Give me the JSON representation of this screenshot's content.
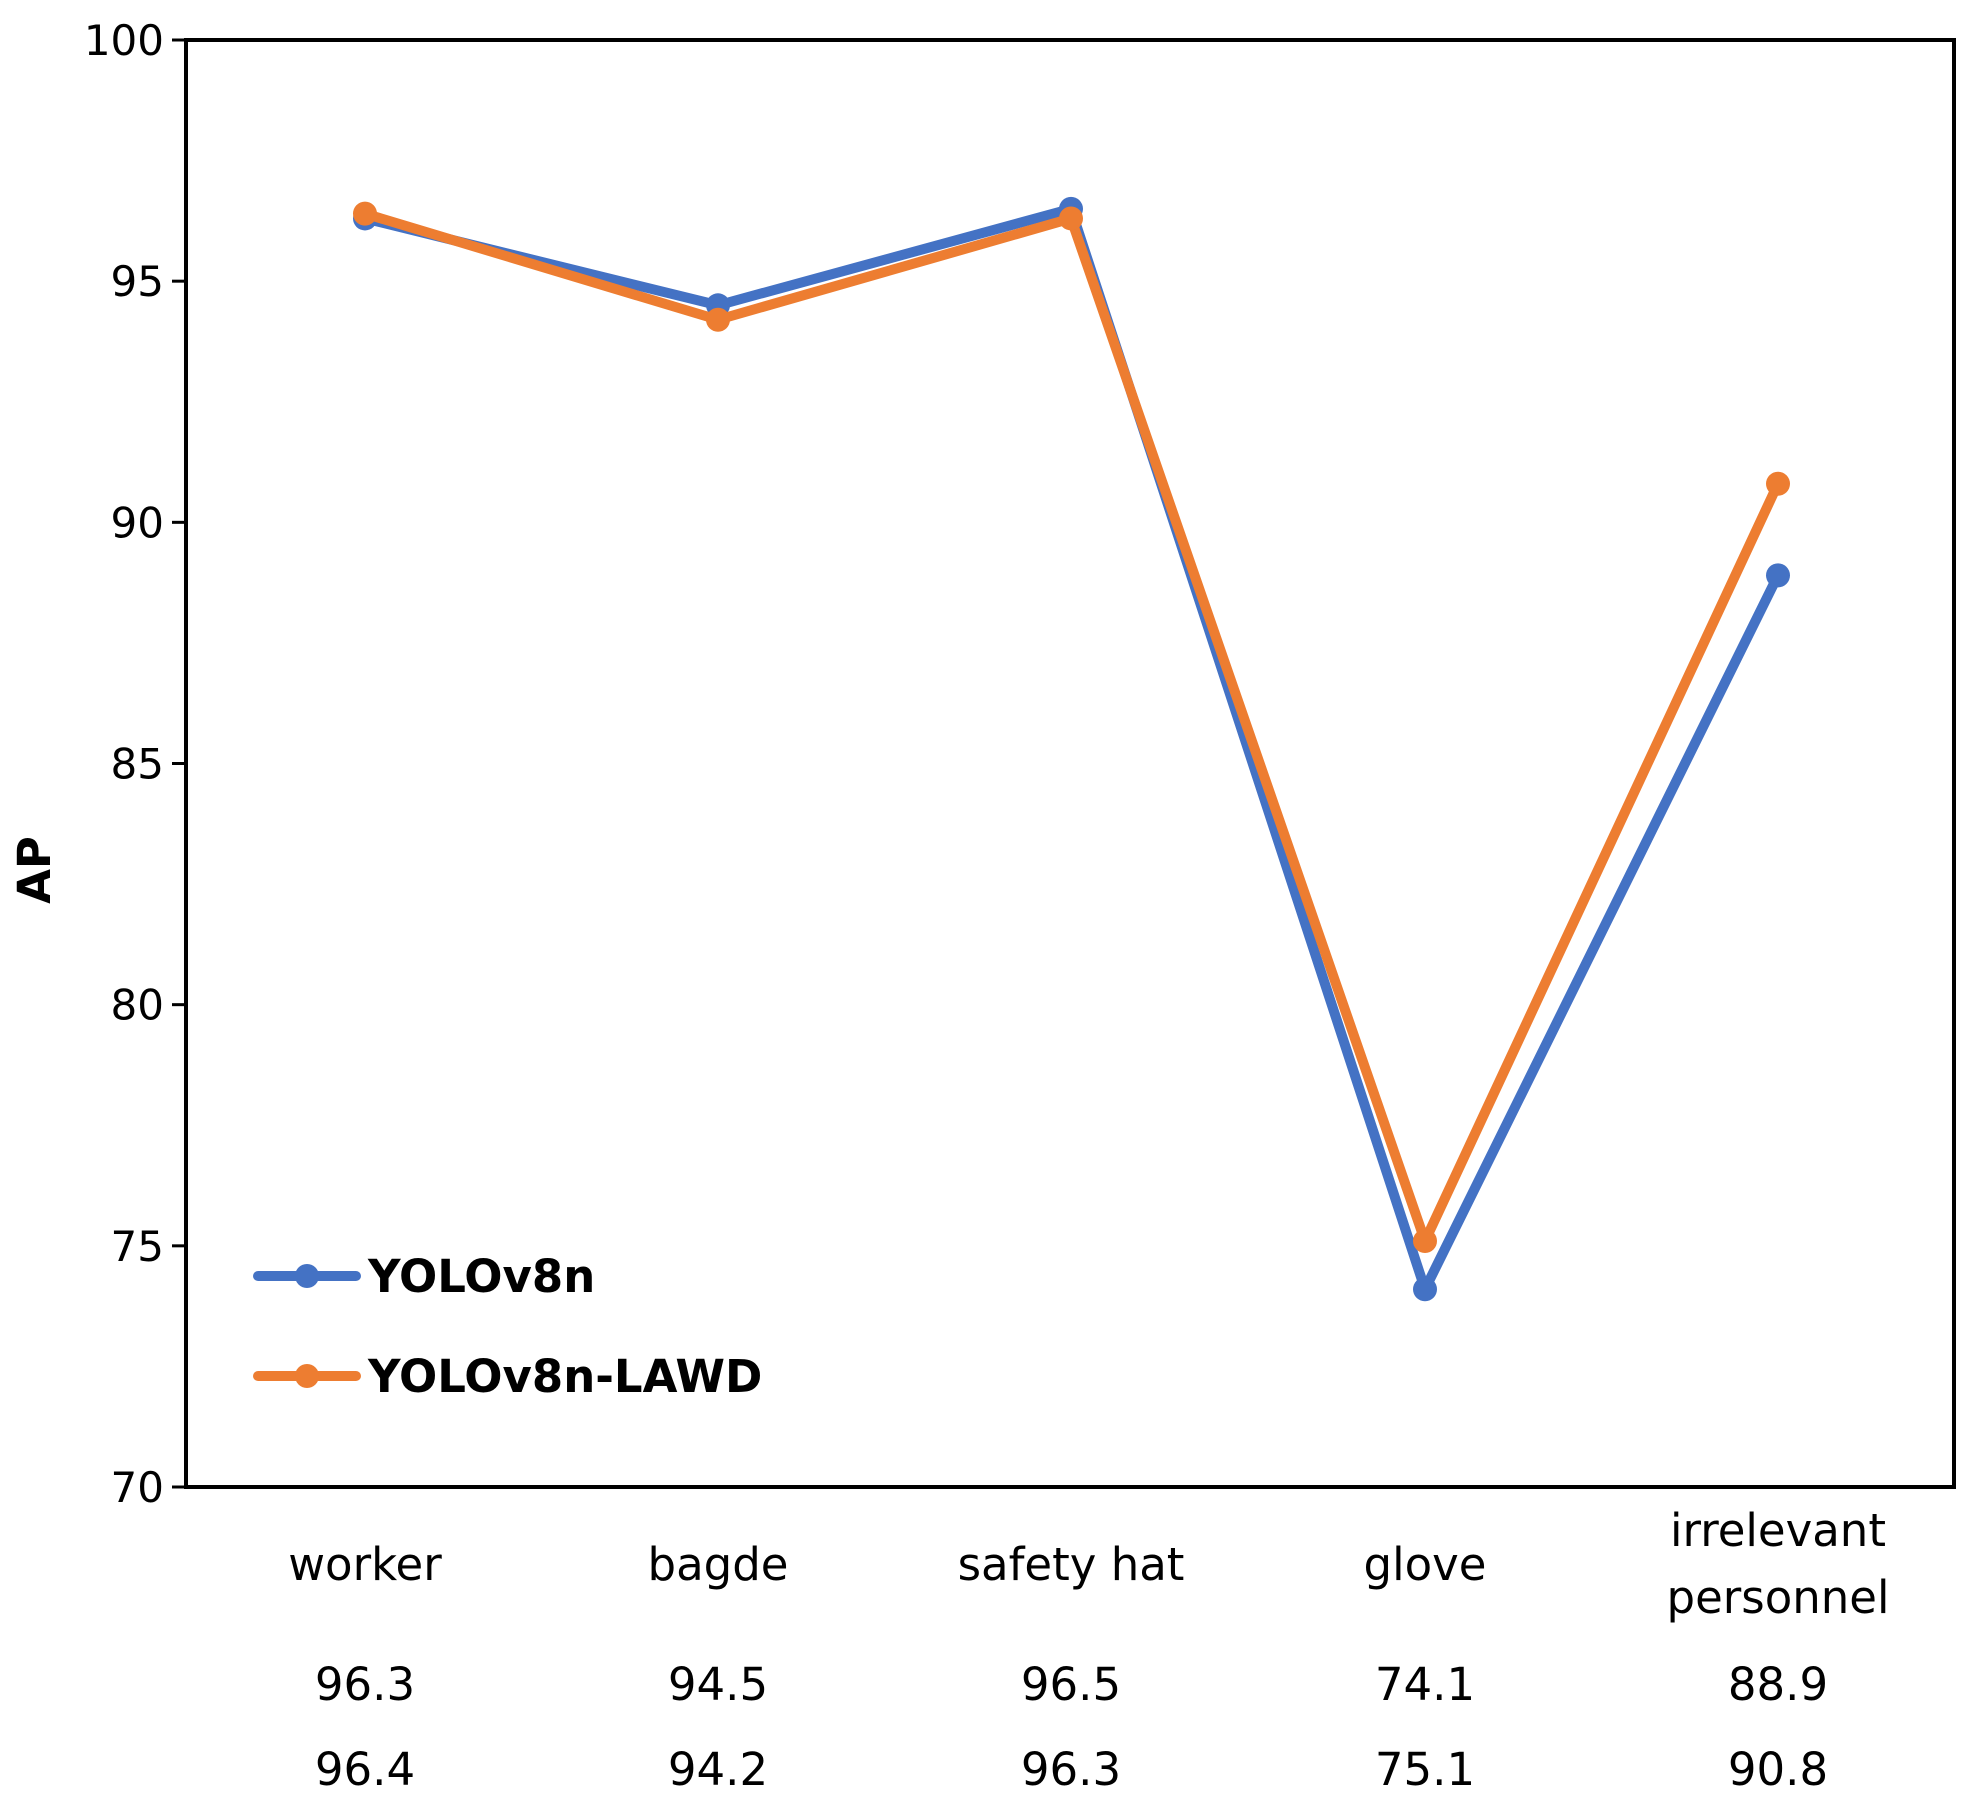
{
  "chart_data": {
    "type": "line",
    "title": "",
    "xlabel": "",
    "ylabel": "AP",
    "ylim": [
      70,
      100
    ],
    "yticks": [
      70,
      75,
      80,
      85,
      90,
      95,
      100
    ],
    "categories": [
      "worker",
      "bagde",
      "safety hat",
      "glove",
      "irrelevant personnel"
    ],
    "category_lines": [
      [
        "worker"
      ],
      [
        "bagde"
      ],
      [
        "safety hat"
      ],
      [
        "glove"
      ],
      [
        "irrelevant",
        "personnel"
      ]
    ],
    "series": [
      {
        "name": "YOLOv8n",
        "color": "#4472C4",
        "values": [
          96.3,
          94.5,
          96.5,
          74.1,
          88.9
        ]
      },
      {
        "name": "YOLOv8n-LAWD",
        "color": "#ED7D31",
        "values": [
          96.4,
          94.2,
          96.3,
          75.1,
          90.8
        ]
      }
    ],
    "legend_position": "bottom-left",
    "grid": false
  }
}
